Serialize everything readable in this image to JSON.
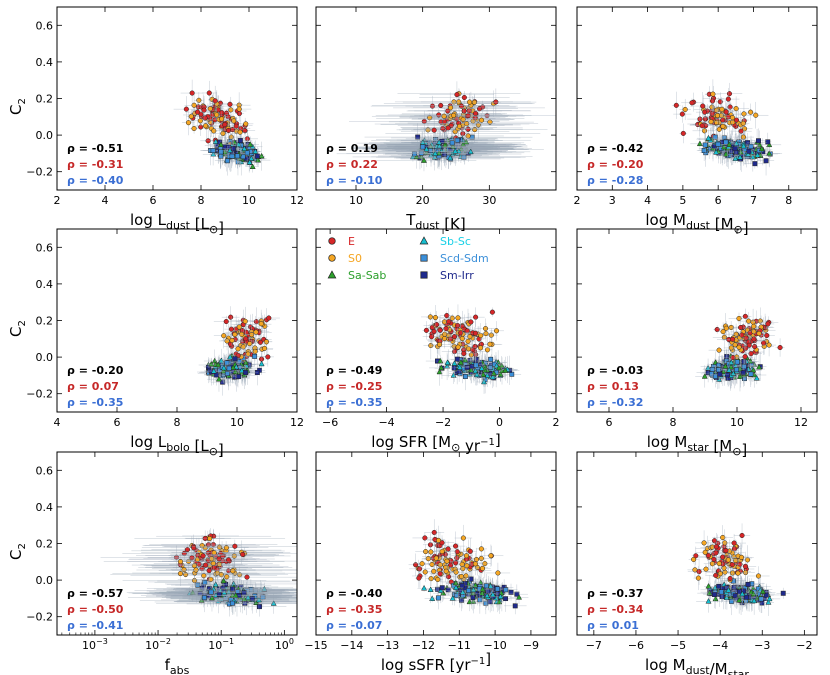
{
  "figure": {
    "ylabel": "C",
    "ylabel_sub": "2",
    "legend": [
      {
        "label": "E",
        "marker": "circle",
        "fill": "#d62728",
        "text_color": "#d62728"
      },
      {
        "label": "S0",
        "marker": "circle",
        "fill": "#f5a623",
        "text_color": "#f5a623"
      },
      {
        "label": "Sa-Sab",
        "marker": "triangle",
        "fill": "#2ca02c",
        "text_color": "#2ca02c"
      },
      {
        "label": "Sb-Sc",
        "marker": "triangle",
        "fill": "#17becf",
        "text_color": "#17d0e6"
      },
      {
        "label": "Scd-Sdm",
        "marker": "square",
        "fill": "#3b8fd9",
        "text_color": "#3b8fd9"
      },
      {
        "label": "Sm-Irr",
        "marker": "square",
        "fill": "#1f2a8c",
        "text_color": "#1f2a8c"
      }
    ],
    "rho_colors": [
      "#000000",
      "#c62828",
      "#3b6fd4"
    ]
  },
  "chart_data": [
    {
      "type": "scatter",
      "title": "",
      "xlabel": "log L",
      "xlabel_sub": "dust",
      "xlabel_unit": " [L",
      "xlabel_unit_sub": "⊙",
      "xlabel_end": "]",
      "xlim": [
        2,
        12
      ],
      "ylim": [
        -0.3,
        0.7
      ],
      "xticks": [
        "2",
        "4",
        "6",
        "8",
        "10",
        "12"
      ],
      "xtick_values": [
        2,
        4,
        6,
        8,
        10,
        12
      ],
      "yticks": [
        "−0.2",
        "0.0",
        "0.2",
        "0.4",
        "0.6"
      ],
      "ytick_values": [
        -0.2,
        0,
        0.2,
        0.4,
        0.6
      ],
      "rho": [
        "ρ = -0.51",
        "ρ = -0.31",
        "ρ = -0.40"
      ],
      "cloud": {
        "x_center": 9.2,
        "x_spread": 1.2,
        "y_center": -0.05,
        "slope": -0.06
      },
      "log_x": false
    },
    {
      "type": "scatter",
      "title": "",
      "xlabel": "T",
      "xlabel_sub": "dust",
      "xlabel_unit": " [K]",
      "xlabel_unit_sub": "",
      "xlabel_end": "",
      "xlim": [
        4,
        40
      ],
      "ylim": [
        -0.3,
        0.7
      ],
      "xticks": [
        "10",
        "20",
        "30"
      ],
      "xtick_values": [
        10,
        20,
        30
      ],
      "yticks": [
        "−0.2",
        "0.0",
        "0.2",
        "0.4",
        "0.6"
      ],
      "ytick_values": [
        -0.2,
        0,
        0.2,
        0.4,
        0.6
      ],
      "rho": [
        "ρ = 0.19",
        "ρ = 0.22",
        "ρ = -0.10"
      ],
      "cloud": {
        "x_center": 24,
        "x_spread": 4.5,
        "y_center": -0.03,
        "slope": 0.005
      },
      "log_x": false
    },
    {
      "type": "scatter",
      "title": "",
      "xlabel": "log M",
      "xlabel_sub": "dust",
      "xlabel_unit": " [M",
      "xlabel_unit_sub": "⊙",
      "xlabel_end": "]",
      "xlim": [
        2,
        8.8
      ],
      "ylim": [
        -0.3,
        0.7
      ],
      "xticks": [
        "2",
        "3",
        "4",
        "5",
        "6",
        "7",
        "8"
      ],
      "xtick_values": [
        2,
        3,
        4,
        5,
        6,
        7,
        8
      ],
      "yticks": [
        "−0.2",
        "0.0",
        "0.2",
        "0.4",
        "0.6"
      ],
      "ytick_values": [
        -0.2,
        0,
        0.2,
        0.4,
        0.6
      ],
      "rho": [
        "ρ = -0.42",
        "ρ = -0.20",
        "ρ = -0.28"
      ],
      "cloud": {
        "x_center": 6.3,
        "x_spread": 1.0,
        "y_center": -0.03,
        "slope": -0.06
      },
      "log_x": false
    },
    {
      "type": "scatter",
      "title": "",
      "xlabel": "log L",
      "xlabel_sub": "bolo",
      "xlabel_unit": " [L",
      "xlabel_unit_sub": "⊙",
      "xlabel_end": "]",
      "xlim": [
        4,
        12
      ],
      "ylim": [
        -0.3,
        0.7
      ],
      "xticks": [
        "4",
        "6",
        "8",
        "10",
        "12"
      ],
      "xtick_values": [
        4,
        6,
        8,
        10,
        12
      ],
      "yticks": [
        "−0.2",
        "0.0",
        "0.2",
        "0.4",
        "0.6"
      ],
      "ytick_values": [
        -0.2,
        0,
        0.2,
        0.4,
        0.6
      ],
      "rho": [
        "ρ = -0.20",
        "ρ = 0.07",
        "ρ = -0.35"
      ],
      "cloud": {
        "x_center": 10.0,
        "x_spread": 0.9,
        "y_center": -0.02,
        "slope": 0.04
      },
      "log_x": false
    },
    {
      "type": "scatter",
      "title": "",
      "xlabel": "log SFR [M",
      "xlabel_sub": "",
      "xlabel_unit": "",
      "xlabel_unit_sub": "⊙",
      "xlabel_end": " yr",
      "xlabel_sup": "−1",
      "xlabel_close": "]",
      "xlim": [
        -6.5,
        2
      ],
      "ylim": [
        -0.3,
        0.7
      ],
      "xticks": [
        "−6",
        "−4",
        "−2",
        "0",
        "2"
      ],
      "xtick_values": [
        -6,
        -4,
        -2,
        0,
        2
      ],
      "yticks": [
        "−0.2",
        "0.0",
        "0.2",
        "0.4",
        "0.6"
      ],
      "ytick_values": [
        -0.2,
        0,
        0.2,
        0.4,
        0.6
      ],
      "rho": [
        "ρ = -0.49",
        "ρ = -0.25",
        "ρ = -0.35"
      ],
      "cloud": {
        "x_center": -1.0,
        "x_spread": 1.3,
        "y_center": -0.02,
        "slope": -0.05
      },
      "log_x": false
    },
    {
      "type": "scatter",
      "title": "",
      "xlabel": "log M",
      "xlabel_sub": "star",
      "xlabel_unit": " [M",
      "xlabel_unit_sub": "⊙",
      "xlabel_end": "]",
      "xlim": [
        5,
        12.5
      ],
      "ylim": [
        -0.3,
        0.7
      ],
      "xticks": [
        "6",
        "8",
        "10",
        "12"
      ],
      "xtick_values": [
        6,
        8,
        10,
        12
      ],
      "yticks": [
        "−0.2",
        "0.0",
        "0.2",
        "0.4",
        "0.6"
      ],
      "ytick_values": [
        -0.2,
        0,
        0.2,
        0.4,
        0.6
      ],
      "rho": [
        "ρ = -0.03",
        "ρ = 0.13",
        "ρ = -0.32"
      ],
      "cloud": {
        "x_center": 10.0,
        "x_spread": 0.9,
        "y_center": -0.02,
        "slope": 0.05
      },
      "log_x": false
    },
    {
      "type": "scatter",
      "title": "",
      "xlabel": "f",
      "xlabel_sub": "abs",
      "xlabel_unit": "",
      "xlabel_unit_sub": "",
      "xlabel_end": "",
      "xlim": [
        -3.6,
        0.2
      ],
      "ylim": [
        -0.3,
        0.7
      ],
      "xticks": [
        "10",
        "10",
        "10",
        "10"
      ],
      "xtick_sups": [
        "−3",
        "−2",
        "−1",
        "0"
      ],
      "xtick_values": [
        -3,
        -2,
        -1,
        0
      ],
      "yticks": [
        "−0.2",
        "0.0",
        "0.2",
        "0.4",
        "0.6"
      ],
      "ytick_values": [
        -0.2,
        0,
        0.2,
        0.4,
        0.6
      ],
      "rho": [
        "ρ = -0.57",
        "ρ = -0.50",
        "ρ = -0.41"
      ],
      "cloud": {
        "x_center": -1.0,
        "x_spread": 0.6,
        "y_center": -0.03,
        "slope": -0.1
      },
      "log_x": true
    },
    {
      "type": "scatter",
      "title": "",
      "xlabel": "log sSFR [yr",
      "xlabel_sub": "",
      "xlabel_unit": "",
      "xlabel_unit_sub": "",
      "xlabel_end": "",
      "xlabel_sup": "−1",
      "xlabel_close": "]",
      "xlim": [
        -15,
        -8.3
      ],
      "ylim": [
        -0.3,
        0.7
      ],
      "xticks": [
        "−15",
        "−14",
        "−13",
        "−12",
        "−11",
        "−10",
        "−9"
      ],
      "xtick_values": [
        -15,
        -14,
        -13,
        -12,
        -11,
        -10,
        -9
      ],
      "yticks": [
        "−0.2",
        "0.0",
        "0.2",
        "0.4",
        "0.6"
      ],
      "ytick_values": [
        -0.2,
        0,
        0.2,
        0.4,
        0.6
      ],
      "rho": [
        "ρ = -0.40",
        "ρ = -0.35",
        "ρ = -0.07"
      ],
      "cloud": {
        "x_center": -10.8,
        "x_spread": 1.2,
        "y_center": -0.02,
        "slope": -0.05
      },
      "log_x": false
    },
    {
      "type": "scatter",
      "title": "",
      "xlabel": "log M",
      "xlabel_sub": "dust",
      "xlabel_unit": "/M",
      "xlabel_unit_sub": "star",
      "xlabel_end": "",
      "xlim": [
        -7.4,
        -1.7
      ],
      "ylim": [
        -0.3,
        0.7
      ],
      "xticks": [
        "−7",
        "−6",
        "−5",
        "−4",
        "−3",
        "−2"
      ],
      "xtick_values": [
        -7,
        -6,
        -5,
        -4,
        -3,
        -2
      ],
      "yticks": [
        "−0.2",
        "0.0",
        "0.2",
        "0.4",
        "0.6"
      ],
      "ytick_values": [
        -0.2,
        0,
        0.2,
        0.4,
        0.6
      ],
      "rho": [
        "ρ = -0.37",
        "ρ = -0.34",
        "ρ = 0.01"
      ],
      "cloud": {
        "x_center": -3.6,
        "x_spread": 0.8,
        "y_center": -0.03,
        "slope": -0.07
      },
      "log_x": false
    }
  ]
}
